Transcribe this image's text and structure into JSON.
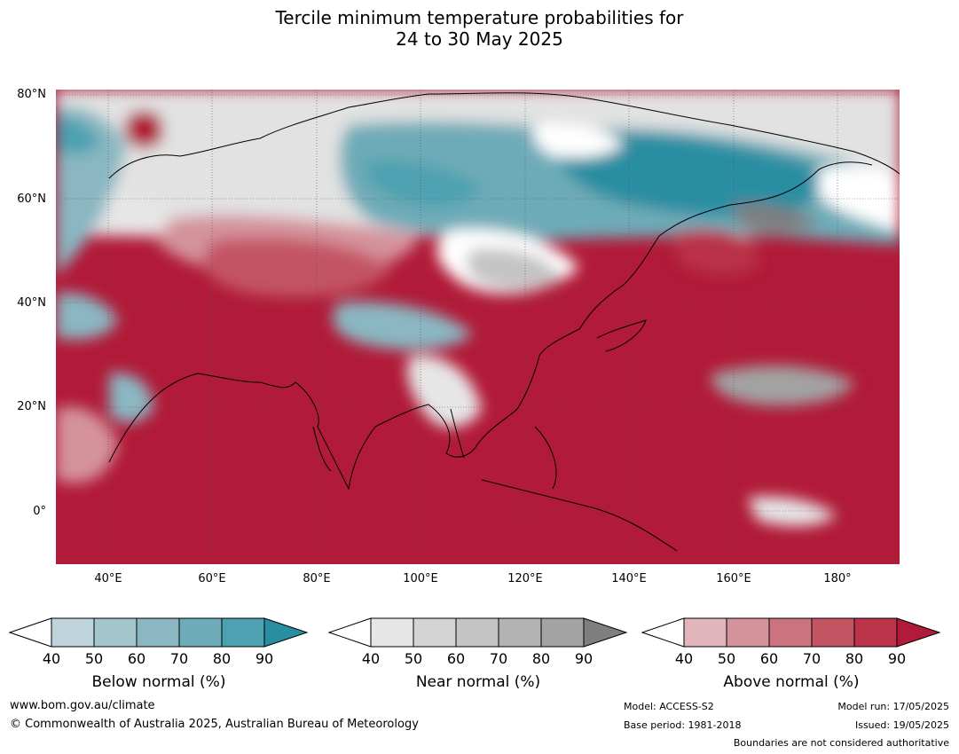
{
  "title_line1": "Tercile minimum temperature probabilities for",
  "title_line2": "24 to 30 May 2025",
  "lat_labels": [
    "80°N",
    "60°N",
    "40°N",
    "20°N",
    "0°"
  ],
  "lon_labels": [
    "40°E",
    "60°E",
    "80°E",
    "100°E",
    "120°E",
    "140°E",
    "160°E",
    "180°"
  ],
  "colorbars": {
    "below": {
      "title": "Below normal (%)",
      "ticks": [
        "40",
        "50",
        "60",
        "70",
        "80",
        "90"
      ],
      "colors": [
        "#ffffff",
        "#bed3da",
        "#a5c5cc",
        "#8ab7c2",
        "#6eabb8",
        "#4da1b0",
        "#2a8ea3"
      ]
    },
    "near": {
      "title": "Near normal (%)",
      "ticks": [
        "40",
        "50",
        "60",
        "70",
        "80",
        "90"
      ],
      "colors": [
        "#ffffff",
        "#e6e6e6",
        "#d4d4d4",
        "#c4c4c4",
        "#b3b3b3",
        "#a3a3a3",
        "#7f7f7f"
      ]
    },
    "above": {
      "title": "Above normal (%)",
      "ticks": [
        "40",
        "50",
        "60",
        "70",
        "80",
        "90"
      ],
      "colors": [
        "#ffffff",
        "#e0b5bc",
        "#d4939b",
        "#cb737e",
        "#c35563",
        "#ba3348",
        "#b11a38"
      ]
    }
  },
  "footer": {
    "website": "www.bom.gov.au/climate",
    "copyright": "© Commonwealth of Australia 2025, Australian Bureau of Meteorology",
    "model": "Model: ACCESS-S2",
    "base_period": "Base period: 1981-2018",
    "model_run": "Model run: 17/05/2025",
    "issued": "Issued: 19/05/2025",
    "disclaimer": "Boundaries are not considered authoritative"
  }
}
